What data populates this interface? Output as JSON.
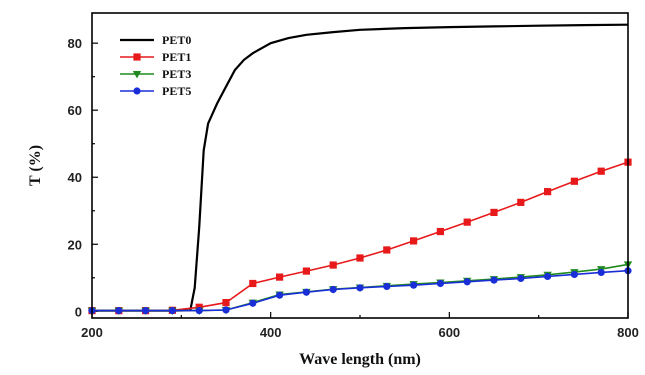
{
  "chart_data": {
    "type": "line",
    "xlabel": "Wave length (nm)",
    "ylabel": "T (%)",
    "xlim": [
      200,
      800
    ],
    "ylim": [
      -2,
      89
    ],
    "xticks": [
      200,
      400,
      600,
      800
    ],
    "yticks": [
      0,
      20,
      40,
      60,
      80
    ],
    "grid": false,
    "legend_position": "top-left",
    "series": [
      {
        "name": "PET0",
        "color": "#000000",
        "marker": "none",
        "x": [
          200,
          230,
          260,
          290,
          310,
          315,
          320,
          325,
          330,
          340,
          350,
          360,
          370,
          380,
          400,
          420,
          440,
          470,
          500,
          550,
          600,
          650,
          700,
          750,
          800
        ],
        "y": [
          0.2,
          0.2,
          0.2,
          0.2,
          0.3,
          7,
          25,
          48,
          56,
          62,
          67,
          72,
          75,
          77,
          80,
          81.5,
          82.5,
          83.3,
          84,
          84.5,
          84.8,
          85,
          85.2,
          85.4,
          85.5
        ]
      },
      {
        "name": "PET1",
        "color": "#e8191a",
        "marker": "square",
        "x": [
          200,
          230,
          260,
          290,
          320,
          350,
          380,
          410,
          440,
          470,
          500,
          530,
          560,
          590,
          620,
          650,
          680,
          710,
          740,
          770,
          800
        ],
        "y": [
          0.2,
          0.2,
          0.2,
          0.3,
          1.2,
          2.6,
          8.3,
          10.2,
          12.0,
          13.8,
          15.9,
          18.3,
          21.0,
          23.8,
          26.6,
          29.5,
          32.5,
          35.7,
          38.8,
          41.8,
          44.5
        ]
      },
      {
        "name": "PET3",
        "color": "#1f8a1f",
        "marker": "triangle-down",
        "x": [
          200,
          230,
          260,
          290,
          320,
          350,
          380,
          410,
          440,
          470,
          500,
          530,
          560,
          590,
          620,
          650,
          680,
          710,
          740,
          770,
          800
        ],
        "y": [
          0.2,
          0.2,
          0.2,
          0.2,
          0.2,
          0.4,
          2.6,
          5.0,
          5.8,
          6.6,
          7.1,
          7.6,
          8.1,
          8.6,
          9.1,
          9.6,
          10.2,
          10.9,
          11.7,
          12.6,
          14.0
        ]
      },
      {
        "name": "PET5",
        "color": "#1a2ed8",
        "marker": "circle",
        "x": [
          200,
          230,
          260,
          290,
          320,
          350,
          380,
          410,
          440,
          470,
          500,
          530,
          560,
          590,
          620,
          650,
          680,
          710,
          740,
          770,
          800
        ],
        "y": [
          0.2,
          0.2,
          0.2,
          0.2,
          0.2,
          0.4,
          2.4,
          4.8,
          5.7,
          6.5,
          7.0,
          7.4,
          7.8,
          8.3,
          8.8,
          9.3,
          9.8,
          10.4,
          11.0,
          11.6,
          12.1
        ]
      }
    ]
  }
}
